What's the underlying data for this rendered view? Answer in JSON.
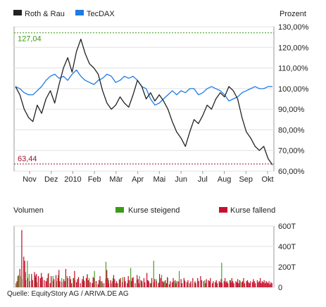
{
  "chart_data": [
    {
      "type": "line",
      "ylabel": "Prozent",
      "x_labels": [
        "Nov",
        "Dez",
        "2010",
        "Feb",
        "Mär",
        "Apr",
        "Mai",
        "Jun",
        "Jul",
        "Aug",
        "Sep",
        "Okt"
      ],
      "ylim": [
        60,
        130
      ],
      "y_ticks": [
        "130,00%",
        "120,00%",
        "110,00%",
        "100,00%",
        "90,00%",
        "80,00%",
        "70,00%",
        "60,00%"
      ],
      "max_label": "127,04",
      "min_label": "63,44",
      "max_value": 127.04,
      "min_value": 63.44,
      "legend": "top-left",
      "series": [
        {
          "name": "Roth & Rau",
          "color": "#222222",
          "values": [
            101,
            97,
            90,
            86,
            84,
            92,
            88,
            95,
            99,
            93,
            102,
            110,
            115,
            108,
            118,
            124,
            117,
            112,
            110,
            107,
            99,
            93,
            90,
            92,
            96,
            93,
            91,
            97,
            104,
            101,
            95,
            98,
            94,
            97,
            94,
            90,
            84,
            79,
            76,
            72,
            79,
            85,
            83,
            87,
            92,
            90,
            95,
            98,
            96,
            101,
            99,
            95,
            86,
            79,
            76,
            72,
            70,
            72,
            66,
            63
          ]
        },
        {
          "name": "TecDAX",
          "color": "#1e7be6",
          "values": [
            101,
            100,
            98,
            97,
            97,
            99,
            101,
            104,
            106,
            107,
            105,
            106,
            104,
            107,
            109,
            106,
            104,
            103,
            102,
            104,
            105,
            107,
            106,
            103,
            104,
            106,
            105,
            106,
            104,
            101,
            100,
            95,
            92,
            93,
            95,
            97,
            99,
            97,
            99,
            98,
            100,
            100,
            97,
            98,
            100,
            101,
            100,
            99,
            97,
            94,
            95,
            96,
            98,
            99,
            100,
            101,
            100,
            100,
            101,
            101
          ]
        }
      ]
    },
    {
      "type": "bar",
      "title": "Volumen",
      "ylim": [
        0,
        600
      ],
      "y_ticks": [
        "600T",
        "400T",
        "200T",
        "0"
      ],
      "legend": "top-right",
      "series": [
        {
          "name": "Kurse steigend",
          "color": "#3c9a18",
          "values": [
            40,
            0,
            0,
            120,
            0,
            110,
            0,
            80,
            0,
            0,
            0,
            150,
            0,
            260,
            0,
            130,
            0,
            0,
            90,
            0,
            0,
            0,
            120,
            0,
            50,
            0,
            0,
            0,
            60,
            0,
            70,
            0,
            0,
            0,
            60,
            0,
            0,
            140,
            0,
            0,
            70,
            0,
            110,
            0,
            0,
            0,
            60,
            0,
            120,
            0,
            0,
            0,
            90,
            0,
            60,
            0,
            0,
            0,
            110,
            0,
            0,
            70,
            0,
            0,
            0,
            90,
            0,
            70,
            0,
            0,
            0,
            90,
            0,
            0,
            0,
            60,
            0,
            70,
            0,
            0,
            0,
            130,
            0,
            90,
            0,
            0,
            0,
            40,
            0,
            160,
            0,
            60,
            0,
            0,
            0,
            0,
            60,
            0,
            40,
            0,
            0,
            0,
            250,
            0,
            0,
            70,
            0,
            0,
            40,
            0,
            90,
            0,
            0,
            40,
            0,
            0,
            0,
            80,
            0,
            0,
            0,
            100,
            0,
            40,
            0,
            0,
            0,
            70,
            0,
            0,
            190,
            0,
            0,
            60,
            0,
            0,
            0,
            70,
            0,
            0,
            110,
            0,
            0,
            40,
            0,
            60,
            0,
            0,
            0,
            70,
            0,
            0,
            40,
            0,
            0,
            0,
            260,
            0,
            0,
            80,
            0,
            0,
            50,
            0,
            0,
            120,
            0,
            0,
            60,
            0,
            0,
            0,
            90,
            0,
            0,
            40,
            0,
            0,
            0,
            60,
            0,
            0,
            60,
            0,
            0,
            160,
            0,
            0,
            40,
            0,
            0,
            70,
            0,
            0,
            0,
            50,
            0,
            0,
            0,
            0,
            40,
            0,
            0,
            60,
            0,
            0,
            0,
            60,
            0,
            0,
            0,
            0,
            0,
            0,
            70,
            0,
            0,
            0,
            0,
            0,
            50,
            0,
            0,
            0,
            0,
            0,
            0,
            60,
            0,
            0,
            0,
            0,
            0,
            240,
            0,
            0,
            0,
            0,
            0,
            60,
            0,
            0,
            0,
            70,
            0,
            0,
            0,
            0,
            0,
            0,
            0,
            0,
            0,
            0,
            60,
            0,
            0,
            0,
            0,
            0,
            0,
            0,
            60,
            0,
            0,
            0,
            0,
            0,
            0,
            0,
            0,
            0,
            0,
            0,
            0,
            0,
            0,
            0,
            0,
            0,
            0,
            0,
            0,
            0,
            0,
            0,
            0,
            0,
            0,
            0,
            0
          ]
        },
        {
          "name": "Kurse fallend",
          "color": "#c8102e",
          "values": [
            0,
            60,
            110,
            0,
            180,
            0,
            560,
            0,
            300,
            260,
            70,
            0,
            90,
            0,
            60,
            0,
            130,
            70,
            0,
            150,
            100,
            130,
            0,
            110,
            0,
            90,
            140,
            100,
            0,
            70,
            0,
            60,
            90,
            130,
            0,
            40,
            110,
            0,
            60,
            80,
            0,
            120,
            0,
            90,
            170,
            60,
            0,
            50,
            0,
            80,
            60,
            180,
            0,
            90,
            0,
            110,
            80,
            40,
            0,
            90,
            160,
            0,
            50,
            80,
            100,
            0,
            40,
            0,
            80,
            110,
            60,
            0,
            90,
            120,
            70,
            0,
            50,
            0,
            40,
            100,
            90,
            0,
            60,
            0,
            30,
            70,
            110,
            0,
            60,
            0,
            40,
            0,
            80,
            170,
            90,
            40,
            0,
            70,
            0,
            60,
            120,
            80,
            0,
            60,
            40,
            0,
            70,
            90,
            0,
            50,
            0,
            100,
            60,
            0,
            40,
            110,
            70,
            0,
            60,
            90,
            100,
            0,
            40,
            0,
            120,
            80,
            40,
            0,
            70,
            60,
            0,
            90,
            50,
            0,
            140,
            70,
            60,
            0,
            40,
            90,
            0,
            50,
            80,
            0,
            60,
            0,
            40,
            130,
            90,
            0,
            60,
            50,
            0,
            70,
            40,
            100,
            0,
            30,
            60,
            0,
            50,
            90,
            0,
            70,
            40,
            0,
            60,
            50,
            0,
            80,
            40,
            0,
            90,
            60,
            0,
            50,
            70,
            0,
            40,
            60,
            0,
            90,
            0,
            50,
            40,
            0,
            90,
            60,
            0,
            110,
            70,
            0,
            60,
            0,
            40,
            80,
            0,
            70,
            60,
            90,
            0,
            40,
            60,
            0,
            50,
            70,
            40,
            0,
            60,
            50,
            80,
            40,
            0,
            60,
            90,
            50,
            60,
            40,
            0,
            70,
            50,
            90,
            60,
            40,
            0,
            60,
            50,
            80,
            40,
            70,
            0,
            50,
            60,
            90,
            40,
            0,
            60,
            70,
            50,
            40,
            60,
            0,
            50,
            80,
            60,
            40,
            0,
            70,
            50,
            60,
            90,
            40,
            60,
            50,
            70,
            40,
            60,
            50,
            40,
            60,
            30,
            50,
            40
          ]
        }
      ]
    }
  ],
  "source": "Quelle: EquityStory AG / ARIVA.DE AG"
}
